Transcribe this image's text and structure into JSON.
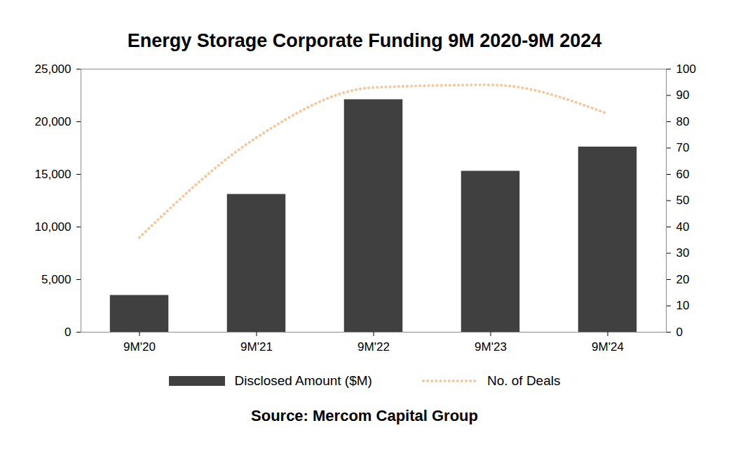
{
  "chart_data": {
    "type": "bar",
    "title": "Energy Storage Corporate Funding 9M 2020-9M 2024",
    "caption": "Source: Mercom Capital Group",
    "categories": [
      "9M'20",
      "9M'21",
      "9M'22",
      "9M'23",
      "9M'24"
    ],
    "series": [
      {
        "name": "Disclosed Amount ($M)",
        "type": "bar",
        "color": "#404040",
        "values": [
          3500,
          13100,
          22100,
          15300,
          17600
        ]
      },
      {
        "name": "No. of Deals",
        "type": "line",
        "color": "#f4c89c",
        "line_style": "dotted",
        "axis": "y2",
        "values": [
          36,
          74,
          93,
          94,
          83
        ]
      }
    ],
    "ylim": [
      0,
      25000
    ],
    "yticks": [
      0,
      {
        "value": 5000,
        "label": "5,000"
      },
      {
        "value": 10000,
        "label": "10,000"
      },
      {
        "value": 15000,
        "label": "15,000"
      },
      {
        "value": 20000,
        "label": "20,000"
      },
      {
        "value": 25000,
        "label": "25,000"
      }
    ],
    "y2lim": [
      0,
      100
    ],
    "y2ticks": [
      0,
      10,
      20,
      30,
      40,
      50,
      60,
      70,
      80,
      90,
      100
    ],
    "grid": false,
    "legend": "bottom"
  }
}
